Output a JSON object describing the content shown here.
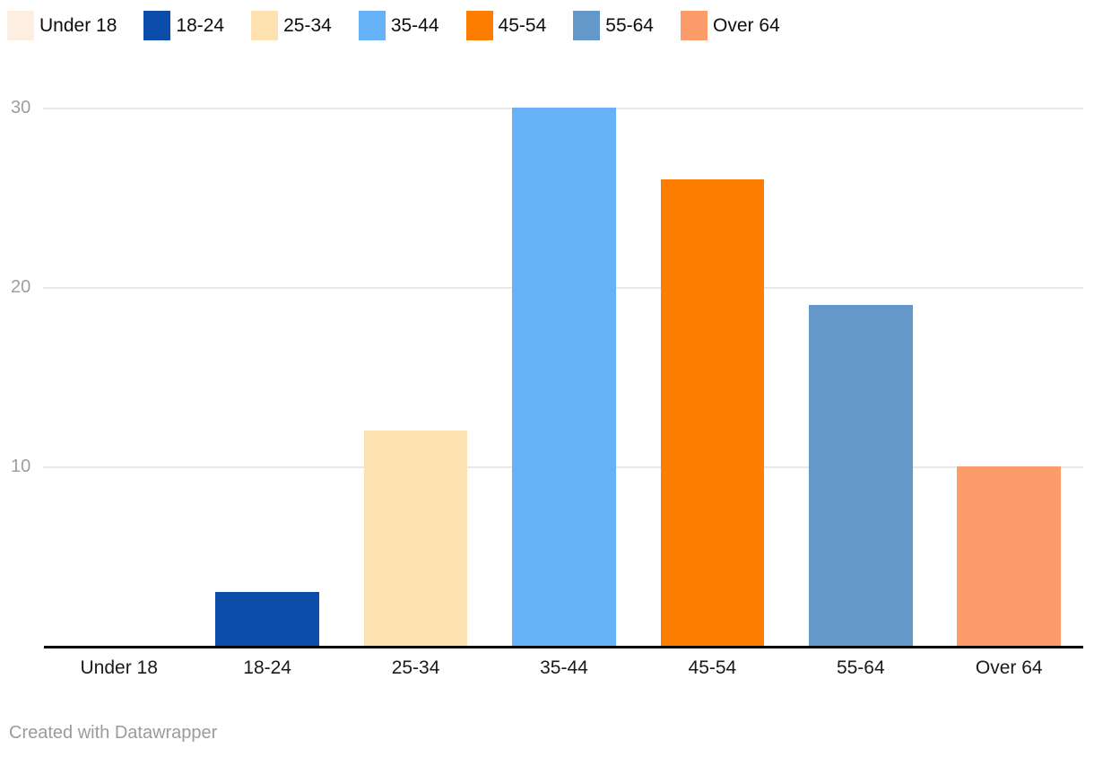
{
  "chart_data": {
    "type": "bar",
    "categories": [
      "Under 18",
      "18-24",
      "25-34",
      "35-44",
      "45-54",
      "55-64",
      "Over 64"
    ],
    "values": [
      0,
      3,
      12,
      30,
      26,
      19,
      10
    ],
    "colors": [
      "#fceee1",
      "#0b4da8",
      "#fde1b1",
      "#67b1f9",
      "#fc7d00",
      "#6598ca",
      "#fd9c6b"
    ],
    "title": "",
    "xlabel": "",
    "ylabel": "",
    "ylim": [
      0,
      30
    ],
    "yticks": [
      10,
      20,
      30
    ],
    "grid": true,
    "legend_position": "top",
    "legend_labels": [
      "Under 18",
      "18-24",
      "25-34",
      "35-44",
      "45-54",
      "55-64",
      "Over 64"
    ]
  },
  "legend": {
    "items": [
      {
        "label": "Under 18",
        "color": "#fceee1"
      },
      {
        "label": "18-24",
        "color": "#0b4da8"
      },
      {
        "label": "25-34",
        "color": "#fde1b1"
      },
      {
        "label": "35-44",
        "color": "#67b1f9"
      },
      {
        "label": "45-54",
        "color": "#fc7d00"
      },
      {
        "label": "55-64",
        "color": "#6598ca"
      },
      {
        "label": "Over 64",
        "color": "#fd9c6b"
      }
    ]
  },
  "footer": {
    "attribution": "Created with Datawrapper"
  },
  "colors": {
    "background": "#ffffff",
    "grid": "#e8e8e8",
    "axis_line": "#020202",
    "tick_label": "#9e9e9e",
    "category_label": "#1a1a1a",
    "legend_label": "#0e0e0e",
    "footer_text": "#9b9b9b"
  }
}
